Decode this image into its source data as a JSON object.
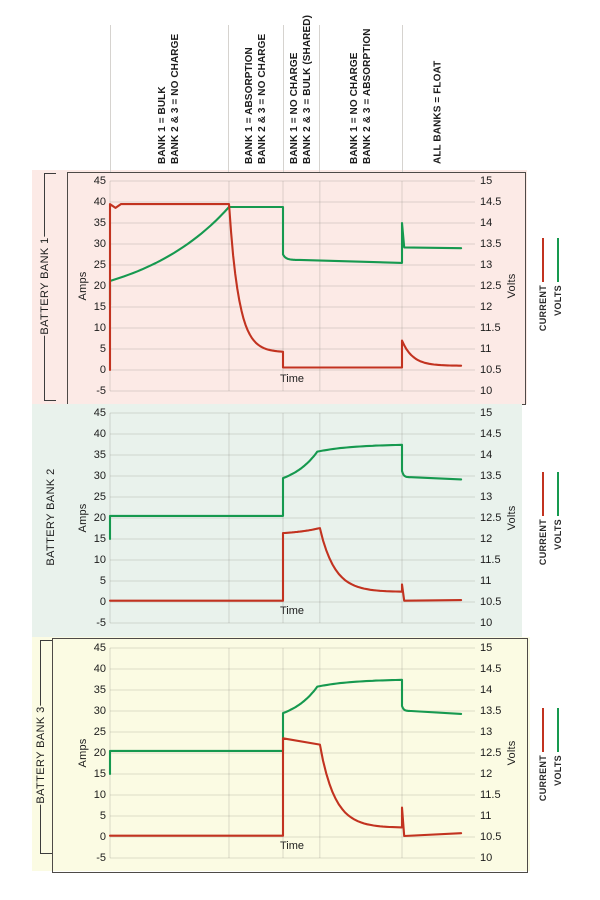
{
  "colors": {
    "current": "#c23320",
    "volts": "#16994f",
    "bank1_bg": "#fceae6",
    "bank2_bg": "#e9f2ec",
    "bank3_bg": "#fbfbe3",
    "gridline": "rgba(125,120,115,0.32)",
    "phase_line": "#d6d3cf"
  },
  "legend": {
    "current": "CURRENT",
    "volts": "VOLTS"
  },
  "axes": {
    "left_label": "Amps",
    "right_label": "Volts",
    "x_label": "Time",
    "amps_ticks": [
      "45",
      "40",
      "35",
      "30",
      "25",
      "20",
      "15",
      "10",
      "5",
      "0",
      "-5"
    ],
    "volts_ticks": [
      "15",
      "14.5",
      "14",
      "13.5",
      "13",
      "12.5",
      "12",
      "11.5",
      "11",
      "10.5",
      "10"
    ]
  },
  "phase_labels": [
    {
      "line1": "BANK 1 = BULK",
      "line2": "BANK 2 & 3 = NO CHARGE"
    },
    {
      "line1": "BANK 1 = ABSORPTION",
      "line2": "BANK 2 & 3 = NO CHARGE"
    },
    {
      "line1": "BANK 1 = NO CHARGE",
      "line2": "BANK 2 & 3 = BULK (SHARED)"
    },
    {
      "line1": "BANK 1 = NO CHARGE",
      "line2": "BANK 2 & 3 = ABSORPTION"
    },
    {
      "line1": "ALL BANKS = FLOAT"
    }
  ],
  "chart_data": [
    {
      "type": "line",
      "title": "BATTERY BANK 1",
      "xlabel": "Time",
      "ylabel_left": "Amps",
      "ylim_left": [
        -5,
        45
      ],
      "ylabel_right": "Volts",
      "ylim_right": [
        10,
        15
      ],
      "x_gridlines": [
        0,
        0.326,
        0.474,
        0.575,
        0.8
      ],
      "series": [
        {
          "name": "CURRENT",
          "unit": "A",
          "points": [
            [
              0,
              0,
              "start"
            ],
            [
              0,
              39.5,
              "lin"
            ],
            [
              0.015,
              38.6,
              "lin"
            ],
            [
              0.03,
              39.5,
              "lin"
            ],
            [
              0.326,
              39.5,
              "lin"
            ],
            [
              0.474,
              4.2,
              "out"
            ],
            [
              0.474,
              0.6,
              "lin"
            ],
            [
              0.8,
              0.6,
              "lin"
            ],
            [
              0.8,
              7,
              "lin"
            ],
            [
              0.962,
              1,
              "out"
            ]
          ]
        },
        {
          "name": "VOLTS",
          "unit": "V",
          "points": [
            [
              0,
              12.05,
              "start"
            ],
            [
              0,
              12.62,
              "lin"
            ],
            [
              0.326,
              14.38,
              "in"
            ],
            [
              0.474,
              14.38,
              "lin"
            ],
            [
              0.474,
              13.25,
              "lin"
            ],
            [
              0.52,
              13.12,
              "out"
            ],
            [
              0.8,
              13.05,
              "lin"
            ],
            [
              0.8,
              14,
              "lin"
            ],
            [
              0.806,
              13.42,
              "lin"
            ],
            [
              0.962,
              13.4,
              "lin"
            ]
          ]
        }
      ]
    },
    {
      "type": "line",
      "title": "BATTERY BANK 2",
      "xlabel": "Time",
      "ylabel_left": "Amps",
      "ylim_left": [
        -5,
        45
      ],
      "ylabel_right": "Volts",
      "ylim_right": [
        10,
        15
      ],
      "x_gridlines": [
        0,
        0.326,
        0.474,
        0.575,
        0.8
      ],
      "series": [
        {
          "name": "CURRENT",
          "unit": "A",
          "points": [
            [
              0,
              0.3,
              "start"
            ],
            [
              0.474,
              0.3,
              "lin"
            ],
            [
              0.474,
              16.4,
              "lin"
            ],
            [
              0.575,
              17.6,
              "in"
            ],
            [
              0.8,
              2.4,
              "out"
            ],
            [
              0.8,
              4.2,
              "lin"
            ],
            [
              0.806,
              0.3,
              "lin"
            ],
            [
              0.962,
              0.45,
              "lin"
            ]
          ]
        },
        {
          "name": "VOLTS",
          "unit": "V",
          "points": [
            [
              0,
              12,
              "start"
            ],
            [
              0,
              12.55,
              "lin"
            ],
            [
              0.474,
              12.55,
              "lin"
            ],
            [
              0.474,
              13.45,
              "lin"
            ],
            [
              0.568,
              14.08,
              "in"
            ],
            [
              0.8,
              14.26,
              "out2"
            ],
            [
              0.8,
              13.62,
              "lin"
            ],
            [
              0.825,
              13.47,
              "out"
            ],
            [
              0.962,
              13.42,
              "lin"
            ]
          ]
        }
      ]
    },
    {
      "type": "line",
      "title": "BATTERY BANK 3",
      "xlabel": "Time",
      "ylabel_left": "Amps",
      "ylim_left": [
        -5,
        45
      ],
      "ylabel_right": "Volts",
      "ylim_right": [
        10,
        15
      ],
      "x_gridlines": [
        0,
        0.326,
        0.474,
        0.575,
        0.8
      ],
      "series": [
        {
          "name": "CURRENT",
          "unit": "A",
          "points": [
            [
              0,
              0.3,
              "start"
            ],
            [
              0.474,
              0.3,
              "lin"
            ],
            [
              0.474,
              23.5,
              "lin"
            ],
            [
              0.575,
              22,
              "lin"
            ],
            [
              0.8,
              2.2,
              "out"
            ],
            [
              0.8,
              7,
              "lin"
            ],
            [
              0.806,
              0.25,
              "lin"
            ],
            [
              0.962,
              0.9,
              "lin"
            ]
          ]
        },
        {
          "name": "VOLTS",
          "unit": "V",
          "points": [
            [
              0,
              12,
              "start"
            ],
            [
              0,
              12.55,
              "lin"
            ],
            [
              0.474,
              12.55,
              "lin"
            ],
            [
              0.474,
              13.45,
              "lin"
            ],
            [
              0.568,
              14.08,
              "in"
            ],
            [
              0.8,
              14.26,
              "out2"
            ],
            [
              0.8,
              13.62,
              "lin"
            ],
            [
              0.825,
              13.5,
              "out"
            ],
            [
              0.962,
              13.43,
              "lin"
            ]
          ]
        }
      ]
    }
  ]
}
